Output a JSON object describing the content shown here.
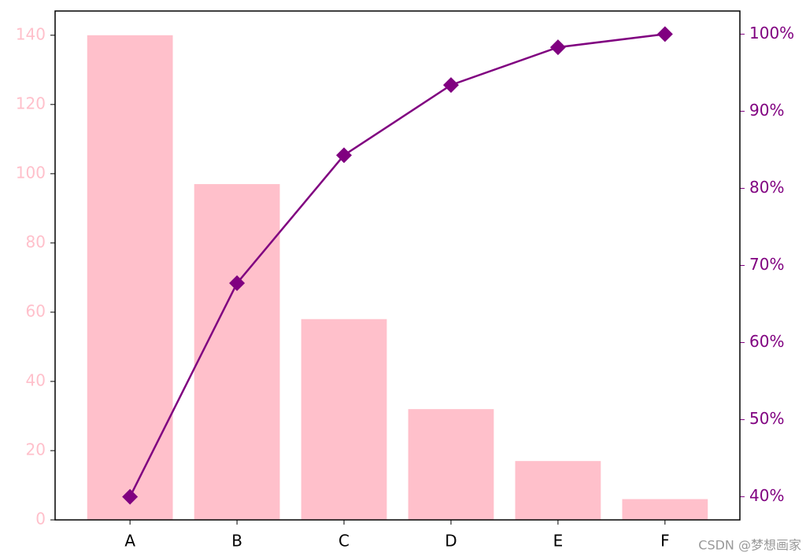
{
  "chart_data": {
    "type": "pareto",
    "categories": [
      "A",
      "B",
      "C",
      "D",
      "E",
      "F"
    ],
    "series": [
      {
        "type": "bar",
        "color": "#ffc0cb",
        "values": [
          140,
          97,
          58,
          32,
          17,
          6
        ]
      },
      {
        "type": "line",
        "color": "#800080",
        "marker": "diamond",
        "axis": "y2",
        "values": [
          40,
          67.7,
          84.3,
          93.4,
          98.3,
          100
        ]
      }
    ],
    "ylim": [
      0,
      147
    ],
    "yticks": [
      0,
      20,
      40,
      60,
      80,
      100,
      120,
      140
    ],
    "ytick_color": "#ffc0cb",
    "y2lim": [
      37,
      103
    ],
    "y2ticks": [
      {
        "value": 40,
        "label": "40%"
      },
      {
        "value": 50,
        "label": "50%"
      },
      {
        "value": 60,
        "label": "60%"
      },
      {
        "value": 70,
        "label": "70%"
      },
      {
        "value": 80,
        "label": "80%"
      },
      {
        "value": 90,
        "label": "90%"
      },
      {
        "value": 100,
        "label": "100%"
      }
    ],
    "y2tick_color": "#800080",
    "watermark": "CSDN @梦想画家"
  }
}
